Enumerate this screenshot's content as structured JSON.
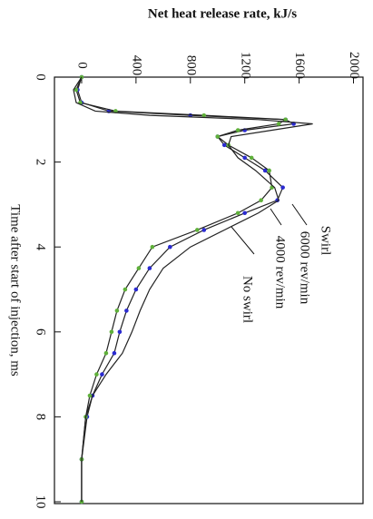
{
  "chart_data": {
    "type": "line",
    "title": "Net heat release rate, kJ/s",
    "x_label": "Time after start of injection, ms",
    "annotation": "Swirl",
    "x": [
      0,
      0.3,
      0.6,
      0.8,
      0.9,
      1.0,
      1.1,
      1.25,
      1.4,
      1.6,
      1.9,
      2.2,
      2.6,
      2.9,
      3.2,
      3.6,
      4.0,
      4.5,
      5.0,
      5.5,
      6.0,
      6.5,
      7.0,
      7.5,
      8.0,
      9.0,
      10.0
    ],
    "series": [
      {
        "name": "6000 rev/min",
        "color": "#2a2ad0",
        "markers": true,
        "values": [
          0,
          -30,
          0,
          200,
          800,
          1500,
          1560,
          1200,
          1000,
          1050,
          1200,
          1350,
          1480,
          1440,
          1200,
          900,
          650,
          500,
          400,
          330,
          280,
          240,
          150,
          80,
          40,
          0,
          0
        ]
      },
      {
        "name": "4000 rev/min",
        "color": "#5fb03a",
        "markers": true,
        "values": [
          0,
          -40,
          -10,
          250,
          900,
          1500,
          1450,
          1150,
          1000,
          1080,
          1250,
          1380,
          1400,
          1320,
          1150,
          850,
          520,
          420,
          320,
          260,
          220,
          180,
          110,
          60,
          30,
          0,
          0
        ]
      },
      {
        "name": "No swirl",
        "color": "#222222",
        "markers": false,
        "values": [
          0,
          -60,
          -40,
          100,
          500,
          1300,
          1700,
          1400,
          1100,
          1080,
          1150,
          1280,
          1420,
          1450,
          1300,
          1050,
          800,
          600,
          500,
          430,
          370,
          300,
          180,
          80,
          30,
          0,
          0
        ]
      }
    ],
    "xlim": [
      0,
      10
    ],
    "xticks": [
      0,
      2,
      4,
      6,
      8,
      10
    ],
    "ylim": [
      -200,
      2070
    ],
    "yticks": [
      0,
      400,
      800,
      1200,
      1600,
      2000
    ]
  }
}
